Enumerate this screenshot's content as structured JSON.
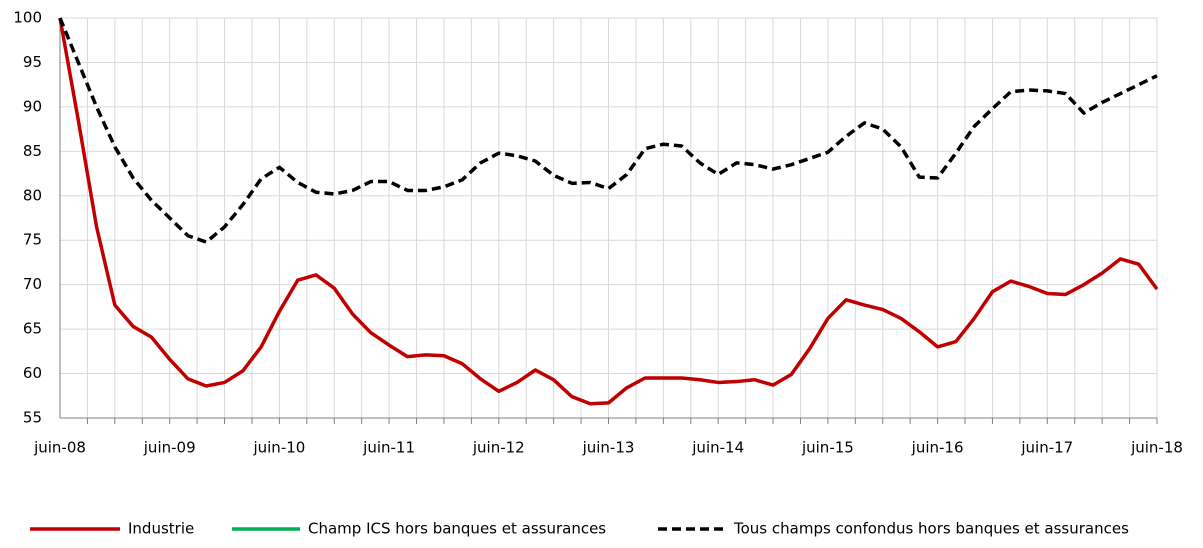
{
  "chart_data": {
    "type": "line",
    "categories": [
      "juin-08",
      null,
      null,
      null,
      null,
      null,
      "juin-09",
      null,
      null,
      null,
      null,
      null,
      "juin-10",
      null,
      null,
      null,
      null,
      null,
      "juin-11",
      null,
      null,
      null,
      null,
      null,
      "juin-12",
      null,
      null,
      null,
      null,
      null,
      "juin-13",
      null,
      null,
      null,
      null,
      null,
      "juin-14",
      null,
      null,
      null,
      null,
      null,
      "juin-15",
      null,
      null,
      null,
      null,
      null,
      "juin-16",
      null,
      null,
      null,
      null,
      null,
      "juin-17",
      null,
      null,
      null,
      null,
      null,
      "juin-18"
    ],
    "series": [
      {
        "name": "Industrie",
        "color": "#c00000",
        "dash": false,
        "values": [
          100,
          88.5,
          76.5,
          67.7,
          65.3,
          64.1,
          61.6,
          59.4,
          58.6,
          59.0,
          60.3,
          63.0,
          67.0,
          70.5,
          71.1,
          69.6,
          66.7,
          64.6,
          63.2,
          61.9,
          62.1,
          62.0,
          61.1,
          59.4,
          58.0,
          59.0,
          60.4,
          59.3,
          57.4,
          56.6,
          56.7,
          58.4,
          59.5,
          59.5,
          59.5,
          59.3,
          59.0,
          59.1,
          59.3,
          58.7,
          59.9,
          62.8,
          66.2,
          68.3,
          67.7,
          67.2,
          66.2,
          64.7,
          63.0,
          63.6,
          66.2,
          69.2,
          70.4,
          69.8,
          69.0,
          68.9,
          70.0,
          71.3,
          72.9,
          72.3,
          69.5
        ]
      },
      {
        "name": "Champ ICS hors banques et assurances",
        "color": "#00b050",
        "dash": false,
        "values": [
          null,
          null,
          null,
          null,
          null,
          null,
          null,
          null,
          null,
          null,
          null,
          null,
          null,
          null,
          null,
          null,
          null,
          null,
          null,
          null,
          null,
          null,
          null,
          null,
          null,
          null,
          null,
          null,
          null,
          null,
          null,
          null,
          null,
          null,
          null,
          null,
          null,
          null,
          null,
          null,
          null,
          null,
          null,
          null,
          null,
          null,
          null,
          null,
          null,
          null,
          null,
          null,
          null,
          null,
          null,
          null,
          null,
          null,
          null,
          null,
          null
        ]
      },
      {
        "name": "Tous champs confondus hors banques et assurances",
        "color": "#000000",
        "dash": true,
        "values": [
          100,
          95,
          90,
          85.5,
          82,
          79.5,
          77.5,
          75.5,
          74.8,
          76.5,
          79,
          81.9,
          83.2,
          81.5,
          80.4,
          80.2,
          80.6,
          81.6,
          81.6,
          80.6,
          80.6,
          81,
          81.8,
          83.7,
          84.8,
          84.5,
          83.9,
          82.3,
          81.4,
          81.5,
          80.8,
          82.4,
          85.3,
          85.8,
          85.6,
          83.7,
          82.4,
          83.7,
          83.5,
          83,
          83.5,
          84.2,
          84.9,
          86.7,
          88.2,
          87.5,
          85.5,
          82.1,
          82,
          84.8,
          87.8,
          89.8,
          91.7,
          91.9,
          91.8,
          91.5,
          89.3,
          90.5,
          91.5,
          92.5,
          93.5
        ]
      }
    ],
    "ylim": [
      55,
      100
    ],
    "yticks": [
      55,
      60,
      65,
      70,
      75,
      80,
      85,
      90,
      95,
      100
    ],
    "grid": true
  }
}
